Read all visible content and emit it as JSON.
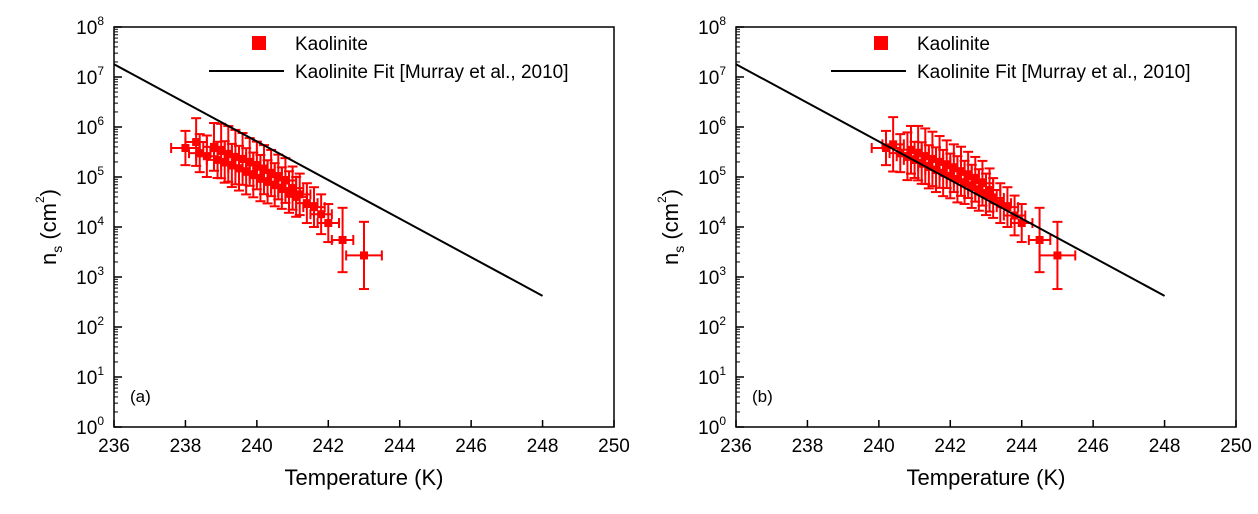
{
  "chart_data": [
    {
      "type": "scatter",
      "panel_label": "(a)",
      "xlabel": "Temperature (K)",
      "ylabel": {
        "main": "n",
        "subscript": "s",
        "unit_open": " (cm",
        "unit_sup": "2",
        "unit_close": ")"
      },
      "xlim": [
        236,
        250
      ],
      "xticks": [
        236,
        238,
        240,
        242,
        244,
        246,
        248,
        250
      ],
      "y_scale": "log",
      "ylim": [
        1,
        100000000
      ],
      "yticks": [
        {
          "base": "10",
          "exp": "0"
        },
        {
          "base": "10",
          "exp": "1"
        },
        {
          "base": "10",
          "exp": "2"
        },
        {
          "base": "10",
          "exp": "3"
        },
        {
          "base": "10",
          "exp": "4"
        },
        {
          "base": "10",
          "exp": "5"
        },
        {
          "base": "10",
          "exp": "6"
        },
        {
          "base": "10",
          "exp": "7"
        },
        {
          "base": "10",
          "exp": "8"
        }
      ],
      "legend": {
        "placement": "top-right",
        "entries": [
          "Kaolinite",
          "Kaolinite Fit [Murray et al., 2010]"
        ]
      },
      "fit_line": {
        "name": "Kaolinite Fit [Murray et al., 2010]",
        "color": "#000000",
        "x": [
          236,
          248
        ],
        "y": [
          18000000,
          420
        ]
      },
      "series": [
        {
          "name": "Kaolinite",
          "color": "#ff0000",
          "x": [
            238.0,
            238.3,
            238.4,
            238.6,
            238.8,
            238.9,
            239.0,
            239.1,
            239.2,
            239.3,
            239.4,
            239.5,
            239.6,
            239.7,
            239.8,
            239.9,
            240.0,
            240.1,
            240.2,
            240.3,
            240.4,
            240.5,
            240.6,
            240.7,
            240.8,
            240.9,
            241.0,
            241.1,
            241.2,
            241.4,
            241.6,
            241.8,
            242.0,
            242.4,
            243.0
          ],
          "y": [
            380000,
            500000,
            300000,
            260000,
            400000,
            220000,
            330000,
            200000,
            290000,
            170000,
            250000,
            150000,
            230000,
            130000,
            200000,
            110000,
            170000,
            95000,
            140000,
            80000,
            120000,
            70000,
            100000,
            60000,
            85000,
            50000,
            60000,
            40000,
            45000,
            30000,
            25000,
            18000,
            12000,
            5500,
            2700
          ],
          "yerr": [
            2.2,
            3.0,
            2.4,
            2.6,
            3.0,
            2.3,
            3.5,
            2.6,
            3.6,
            2.7,
            3.5,
            2.8,
            3.3,
            2.9,
            3.0,
            2.8,
            3.0,
            2.9,
            3.1,
            2.7,
            2.9,
            2.7,
            2.8,
            2.6,
            2.8,
            2.6,
            2.7,
            2.5,
            2.6,
            2.5,
            2.5,
            2.5,
            2.4,
            4.4,
            4.7
          ],
          "xerr": [
            0.4,
            0.3,
            0.3,
            0.3,
            0.3,
            0.3,
            0.3,
            0.3,
            0.3,
            0.3,
            0.3,
            0.3,
            0.3,
            0.3,
            0.3,
            0.3,
            0.3,
            0.3,
            0.3,
            0.3,
            0.3,
            0.3,
            0.3,
            0.3,
            0.3,
            0.3,
            0.3,
            0.3,
            0.3,
            0.3,
            0.3,
            0.3,
            0.3,
            0.3,
            0.5
          ]
        }
      ]
    },
    {
      "type": "scatter",
      "panel_label": "(b)",
      "xlabel": "Temperature (K)",
      "ylabel": {
        "main": "n",
        "subscript": "s",
        "unit_open": " (cm",
        "unit_sup": "2",
        "unit_close": ")"
      },
      "xlim": [
        236,
        250
      ],
      "xticks": [
        236,
        238,
        240,
        242,
        244,
        246,
        248,
        250
      ],
      "y_scale": "log",
      "ylim": [
        1,
        100000000
      ],
      "yticks": [
        {
          "base": "10",
          "exp": "0"
        },
        {
          "base": "10",
          "exp": "1"
        },
        {
          "base": "10",
          "exp": "2"
        },
        {
          "base": "10",
          "exp": "3"
        },
        {
          "base": "10",
          "exp": "4"
        },
        {
          "base": "10",
          "exp": "5"
        },
        {
          "base": "10",
          "exp": "6"
        },
        {
          "base": "10",
          "exp": "7"
        },
        {
          "base": "10",
          "exp": "8"
        }
      ],
      "legend": {
        "placement": "top-right",
        "entries": [
          "Kaolinite",
          "Kaolinite Fit [Murray et al., 2010]"
        ]
      },
      "fit_line": {
        "name": "Kaolinite Fit [Murray et al., 2010]",
        "color": "#000000",
        "x": [
          236,
          248
        ],
        "y": [
          18000000,
          420
        ]
      },
      "series": [
        {
          "name": "Kaolinite",
          "color": "#ff0000",
          "x": [
            240.2,
            240.4,
            240.6,
            240.8,
            240.9,
            241.0,
            241.1,
            241.2,
            241.3,
            241.4,
            241.5,
            241.6,
            241.7,
            241.8,
            241.9,
            242.0,
            242.1,
            242.2,
            242.3,
            242.4,
            242.5,
            242.6,
            242.7,
            242.8,
            242.9,
            243.0,
            243.1,
            243.2,
            243.4,
            243.6,
            243.8,
            244.0,
            244.5,
            245.0
          ],
          "y": [
            380000,
            450000,
            300000,
            260000,
            350000,
            220000,
            300000,
            190000,
            260000,
            160000,
            230000,
            140000,
            200000,
            120000,
            180000,
            105000,
            150000,
            90000,
            130000,
            78000,
            110000,
            65000,
            90000,
            55000,
            75000,
            45000,
            55000,
            38000,
            30000,
            25000,
            17000,
            12000,
            5500,
            2700
          ],
          "yerr": [
            2.2,
            3.5,
            2.4,
            3.0,
            3.0,
            2.3,
            3.5,
            2.6,
            3.6,
            2.7,
            3.5,
            2.8,
            3.3,
            2.9,
            3.0,
            2.8,
            3.0,
            2.9,
            3.1,
            2.7,
            2.9,
            2.7,
            2.8,
            2.6,
            2.8,
            2.6,
            2.7,
            2.5,
            2.5,
            2.5,
            2.5,
            2.4,
            4.4,
            4.7
          ],
          "xerr": [
            0.4,
            0.3,
            0.3,
            0.3,
            0.3,
            0.3,
            0.3,
            0.3,
            0.3,
            0.3,
            0.3,
            0.3,
            0.3,
            0.3,
            0.3,
            0.3,
            0.3,
            0.3,
            0.3,
            0.3,
            0.3,
            0.3,
            0.3,
            0.3,
            0.3,
            0.3,
            0.3,
            0.3,
            0.3,
            0.3,
            0.3,
            0.3,
            0.3,
            0.5
          ]
        }
      ]
    }
  ]
}
